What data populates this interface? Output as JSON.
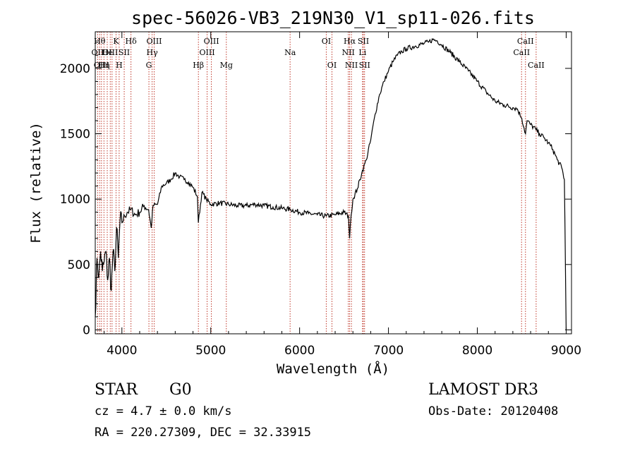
{
  "chart_data": {
    "type": "line",
    "title": "spec-56026-VB3_219N30_V1_sp11-026.fits",
    "xlabel": "Wavelength (Å)",
    "ylabel": "Flux (relative)",
    "xlim": [
      3700,
      9060
    ],
    "ylim": [
      -30,
      2280
    ],
    "xticks": [
      {
        "value": 4000,
        "label": "4000"
      },
      {
        "value": 5000,
        "label": "5000"
      },
      {
        "value": 6000,
        "label": "6000"
      },
      {
        "value": 7000,
        "label": "7000"
      },
      {
        "value": 8000,
        "label": "8000"
      },
      {
        "value": 9000,
        "label": "9000"
      }
    ],
    "yticks": [
      {
        "value": 0,
        "label": "0"
      },
      {
        "value": 500,
        "label": "500"
      },
      {
        "value": 1000,
        "label": "1000"
      },
      {
        "value": 1500,
        "label": "1500"
      },
      {
        "value": 2000,
        "label": "2000"
      }
    ],
    "grid": false,
    "series": [
      {
        "name": "flux",
        "x": [
          3700,
          3720,
          3740,
          3760,
          3780,
          3800,
          3820,
          3840,
          3860,
          3880,
          3900,
          3920,
          3940,
          3960,
          3980,
          4000,
          4030,
          4060,
          4100,
          4150,
          4200,
          4250,
          4300,
          4330,
          4350,
          4400,
          4450,
          4500,
          4550,
          4600,
          4650,
          4700,
          4750,
          4800,
          4850,
          4860,
          4900,
          4950,
          5000,
          5100,
          5200,
          5300,
          5400,
          5500,
          5600,
          5700,
          5800,
          5900,
          6000,
          6100,
          6200,
          6300,
          6400,
          6500,
          6550,
          6563,
          6580,
          6600,
          6650,
          6700,
          6750,
          6800,
          6850,
          6900,
          6950,
          7000,
          7050,
          7100,
          7150,
          7200,
          7300,
          7400,
          7450,
          7500,
          7550,
          7600,
          7700,
          7800,
          7900,
          8000,
          8100,
          8200,
          8300,
          8400,
          8450,
          8500,
          8542,
          8560,
          8600,
          8662,
          8700,
          8750,
          8800,
          8850,
          8900,
          8950,
          8980,
          9000
        ],
        "y": [
          100,
          550,
          400,
          600,
          450,
          520,
          600,
          380,
          550,
          300,
          600,
          450,
          780,
          550,
          850,
          820,
          870,
          900,
          920,
          880,
          900,
          950,
          920,
          780,
          950,
          960,
          1100,
          1120,
          1150,
          1200,
          1170,
          1150,
          1130,
          1090,
          1020,
          820,
          1050,
          1000,
          960,
          970,
          960,
          950,
          950,
          960,
          950,
          940,
          930,
          920,
          900,
          890,
          880,
          870,
          880,
          900,
          870,
          700,
          880,
          1000,
          1080,
          1200,
          1300,
          1450,
          1650,
          1800,
          1900,
          1980,
          2050,
          2100,
          2130,
          2150,
          2170,
          2190,
          2200,
          2220,
          2210,
          2180,
          2120,
          2050,
          1980,
          1900,
          1820,
          1750,
          1720,
          1700,
          1690,
          1620,
          1500,
          1600,
          1570,
          1530,
          1500,
          1470,
          1430,
          1380,
          1300,
          1240,
          1150,
          0
        ]
      }
    ],
    "lines": [
      {
        "x": 3727,
        "labels": [
          "OII"
        ],
        "row": 1
      },
      {
        "x": 3750,
        "labels": [
          "Hθ"
        ],
        "row": 0
      },
      {
        "x": 3770,
        "labels": [
          "OIII"
        ],
        "row": 2
      },
      {
        "x": 3798,
        "labels": [
          "Hη"
        ],
        "row": 2
      },
      {
        "x": 3835,
        "labels": [
          "He"
        ],
        "row": 1
      },
      {
        "x": 3869,
        "labels": [
          "OIII"
        ],
        "row": 1
      },
      {
        "x": 3889,
        "labels": [],
        "row": 0
      },
      {
        "x": 3934,
        "labels": [
          "K"
        ],
        "row": 0
      },
      {
        "x": 3969,
        "labels": [
          "H"
        ],
        "row": 2
      },
      {
        "x": 4026,
        "labels": [
          "SII"
        ],
        "row": 1
      },
      {
        "x": 4102,
        "labels": [
          "Hδ"
        ],
        "row": 0
      },
      {
        "x": 4304,
        "labels": [
          "G"
        ],
        "row": 2
      },
      {
        "x": 4340,
        "labels": [
          "Hγ"
        ],
        "row": 1
      },
      {
        "x": 4363,
        "labels": [
          "OIII"
        ],
        "row": 0
      },
      {
        "x": 4861,
        "labels": [
          "Hβ"
        ],
        "row": 2
      },
      {
        "x": 4959,
        "labels": [
          "OIII"
        ],
        "row": 1
      },
      {
        "x": 5007,
        "labels": [
          "OIII"
        ],
        "row": 0
      },
      {
        "x": 5175,
        "labels": [
          "Mg"
        ],
        "row": 2
      },
      {
        "x": 5893,
        "labels": [
          "Na"
        ],
        "row": 1
      },
      {
        "x": 6300,
        "labels": [
          "OI"
        ],
        "row": 0
      },
      {
        "x": 6364,
        "labels": [
          "OI"
        ],
        "row": 2
      },
      {
        "x": 6548,
        "labels": [
          "NII"
        ],
        "row": 1
      },
      {
        "x": 6563,
        "labels": [
          "Hα"
        ],
        "row": 0
      },
      {
        "x": 6583,
        "labels": [
          "NII"
        ],
        "row": 2
      },
      {
        "x": 6708,
        "labels": [
          "Li"
        ],
        "row": 1
      },
      {
        "x": 6717,
        "labels": [
          "SII"
        ],
        "row": 0
      },
      {
        "x": 6731,
        "labels": [
          "SII"
        ],
        "row": 2
      },
      {
        "x": 8498,
        "labels": [
          "CaII"
        ],
        "row": 1
      },
      {
        "x": 8542,
        "labels": [
          "CaII"
        ],
        "row": 0
      },
      {
        "x": 8662,
        "labels": [
          "CaII"
        ],
        "row": 2
      }
    ]
  },
  "info": {
    "object_class": "STAR",
    "subclass": "G0",
    "survey": "LAMOST DR3",
    "cz": "cz = 4.7 ± 0.0 km/s",
    "obs_date": "Obs-Date: 20120408",
    "coords": "RA = 220.27309, DEC =  32.33915"
  }
}
